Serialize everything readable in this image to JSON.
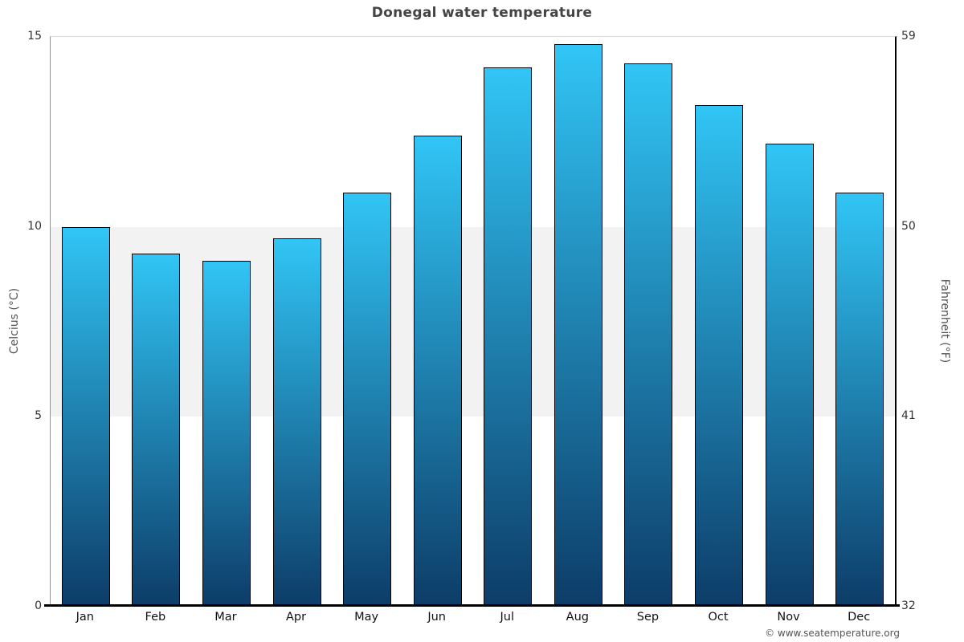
{
  "chart_data": {
    "type": "bar",
    "title": "Donegal water temperature",
    "categories": [
      "Jan",
      "Feb",
      "Mar",
      "Apr",
      "May",
      "Jun",
      "Jul",
      "Aug",
      "Sep",
      "Oct",
      "Nov",
      "Dec"
    ],
    "values": [
      10.0,
      9.3,
      9.1,
      9.7,
      10.9,
      12.4,
      14.2,
      14.8,
      14.3,
      13.2,
      12.2,
      10.9
    ],
    "unit_celsius": "°C",
    "unit_fahrenheit": "°F",
    "ylabel_left": "Celcius (°C)",
    "ylabel_right": "Fahrenheit (°F)",
    "yticks_celsius": [
      0,
      5,
      10,
      15
    ],
    "yticks_fahrenheit": [
      32,
      41,
      50,
      59
    ],
    "ylim_celsius": [
      0,
      15
    ],
    "ylim_fahrenheit": [
      32,
      59
    ],
    "plot_band_celsius": [
      5,
      10
    ],
    "grid": "top-line-and-band",
    "legend_position": "none",
    "colors": {
      "bar_gradient_top": "#31c5f5",
      "bar_gradient_bottom": "#0d3c68",
      "bar_border": "#000000",
      "plot_band": "#f2f2f2",
      "title_text": "#444444",
      "axis_title_text": "#555555",
      "tick_text": "#333333"
    }
  },
  "footer": {
    "copyright": "© www.seatemperature.org"
  }
}
